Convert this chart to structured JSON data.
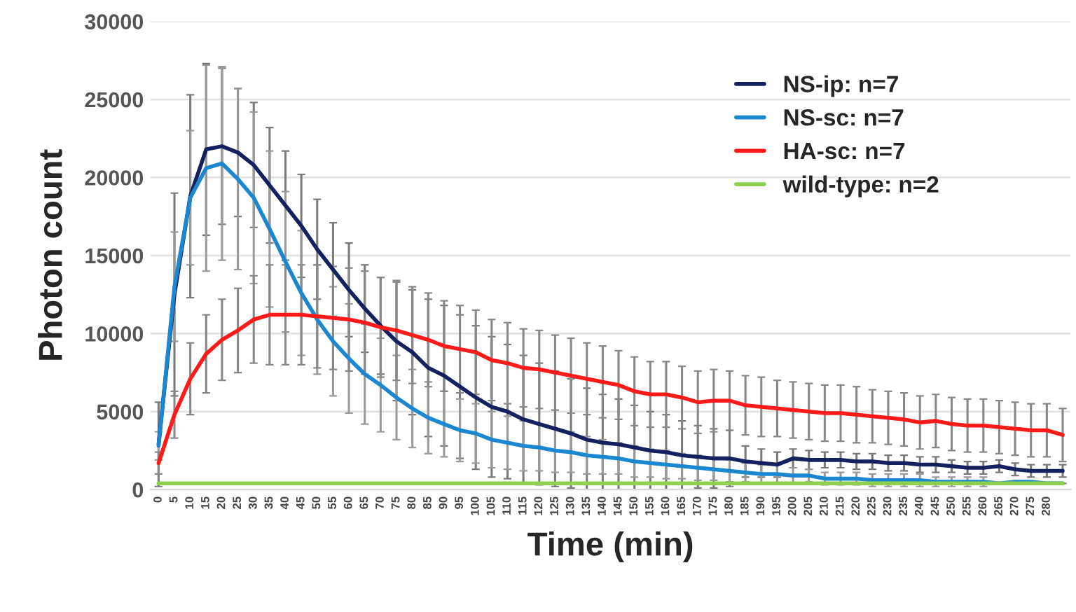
{
  "chart_data": {
    "type": "line",
    "xlabel": "Time (min)",
    "ylabel": "Photon count",
    "categories": [
      "0",
      "5",
      "10",
      "15",
      "20",
      "25",
      "30",
      "35",
      "40",
      "45",
      "50",
      "55",
      "60",
      "65",
      "70",
      "75",
      "80",
      "85",
      "90",
      "95",
      "100",
      "105",
      "110",
      "115",
      "120",
      "125",
      "130",
      "135",
      "140",
      "145",
      "150",
      "155",
      "160",
      "165",
      "170",
      "175",
      "180",
      "185",
      "190",
      "195",
      "200",
      "205",
      "210",
      "215",
      "220",
      "225",
      "230",
      "235",
      "240",
      "245",
      "250",
      "255",
      "260",
      "265",
      "270",
      "275",
      "280",
      null
    ],
    "ylim": [
      0,
      30000
    ],
    "yticks": [
      0,
      5000,
      10000,
      15000,
      20000,
      25000,
      30000
    ],
    "grid": "y",
    "legend": "top right",
    "marker": "none",
    "line_style": "solid",
    "series": [
      {
        "name": "NS-ip: n=7",
        "color": "#14215e",
        "values": [
          2900,
          12500,
          18800,
          21800,
          22000,
          21600,
          20800,
          19500,
          18200,
          16900,
          15400,
          14100,
          12800,
          11600,
          10500,
          9500,
          8800,
          7800,
          7300,
          6600,
          5900,
          5300,
          5000,
          4500,
          4200,
          3900,
          3600,
          3200,
          3000,
          2900,
          2700,
          2500,
          2400,
          2200,
          2100,
          2000,
          2000,
          1800,
          1700,
          1600,
          2000,
          1900,
          1900,
          1900,
          1800,
          1800,
          1700,
          1700,
          1600,
          1600,
          1500,
          1400,
          1400,
          1500,
          1300,
          1200,
          1200,
          1200
        ],
        "errors": [
          2700,
          6500,
          6500,
          5500,
          5000,
          4100,
          4000,
          3700,
          3500,
          3300,
          3200,
          3000,
          3000,
          2800,
          3100,
          3800,
          4000,
          4400,
          4500,
          4600,
          4600,
          4500,
          4300,
          4100,
          3900,
          3700,
          3500,
          3300,
          3100,
          2900,
          2700,
          2500,
          2400,
          2200,
          2000,
          1900,
          1800,
          1000,
          900,
          800,
          600,
          600,
          500,
          500,
          500,
          500,
          500,
          500,
          500,
          500,
          400,
          400,
          400,
          400,
          400,
          400,
          400,
          400
        ]
      },
      {
        "name": "NS-sc: n=7",
        "color": "#1b87d0",
        "values": [
          2800,
          13000,
          18700,
          20600,
          20900,
          19900,
          18700,
          16700,
          14600,
          12600,
          10900,
          9500,
          8400,
          7400,
          6700,
          5900,
          5200,
          4600,
          4200,
          3800,
          3600,
          3200,
          3000,
          2800,
          2700,
          2500,
          2400,
          2200,
          2100,
          2000,
          1800,
          1700,
          1600,
          1500,
          1400,
          1300,
          1200,
          1100,
          1000,
          1000,
          900,
          900,
          700,
          700,
          700,
          600,
          600,
          600,
          600,
          500,
          500,
          500,
          500,
          400,
          500,
          500,
          400,
          400
        ],
        "errors": [
          900,
          3500,
          4300,
          6600,
          6200,
          5800,
          5500,
          5000,
          4500,
          4000,
          3500,
          3500,
          3500,
          3200,
          3000,
          2700,
          2500,
          2300,
          2100,
          2000,
          1900,
          1800,
          1700,
          1600,
          1500,
          1400,
          1300,
          1200,
          1100,
          1000,
          1000,
          900,
          900,
          800,
          800,
          700,
          700,
          600,
          600,
          600,
          500,
          400,
          400,
          400,
          400,
          400,
          400,
          400,
          400,
          300,
          300,
          300,
          300,
          null,
          null,
          null,
          null,
          null
        ]
      },
      {
        "name": "HA-sc: n=7",
        "color": "#ff1a1a",
        "values": [
          1700,
          4800,
          7100,
          8700,
          9600,
          10200,
          10900,
          11200,
          11200,
          11200,
          11100,
          11000,
          10900,
          10700,
          10400,
          10200,
          9900,
          9600,
          9200,
          9000,
          8800,
          8300,
          8100,
          7800,
          7700,
          7500,
          7300,
          7100,
          6900,
          6700,
          6300,
          6100,
          6100,
          5900,
          5600,
          5700,
          5700,
          5400,
          5300,
          5200,
          5100,
          5000,
          4900,
          4900,
          4800,
          4700,
          4600,
          4500,
          4300,
          4400,
          4200,
          4100,
          4100,
          4000,
          3900,
          3800,
          3800,
          3500
        ],
        "errors": [
          700,
          1500,
          2300,
          2500,
          2600,
          2700,
          2800,
          3200,
          3200,
          3200,
          3300,
          3300,
          3300,
          3300,
          3200,
          3200,
          3100,
          3000,
          2900,
          2800,
          2700,
          2600,
          2600,
          2500,
          2500,
          2400,
          2400,
          2300,
          2300,
          2200,
          2200,
          2100,
          2100,
          2000,
          2000,
          2000,
          1900,
          1900,
          1900,
          1800,
          1800,
          1800,
          1800,
          1800,
          1800,
          1700,
          1700,
          1700,
          1700,
          1700,
          1700,
          1700,
          1700,
          1700,
          1700,
          1700,
          1700,
          1700
        ]
      },
      {
        "name": "wild-type: n=2",
        "color": "#8fd14f",
        "values": [
          400,
          400,
          400,
          400,
          400,
          400,
          400,
          400,
          400,
          400,
          400,
          400,
          400,
          400,
          400,
          400,
          400,
          400,
          400,
          400,
          400,
          400,
          400,
          400,
          400,
          400,
          400,
          400,
          400,
          400,
          400,
          400,
          400,
          400,
          400,
          400,
          400,
          400,
          400,
          400,
          400,
          400,
          400,
          400,
          400,
          400,
          400,
          400,
          400,
          400,
          400,
          400,
          400,
          400,
          400,
          400,
          400,
          400
        ]
      }
    ]
  }
}
